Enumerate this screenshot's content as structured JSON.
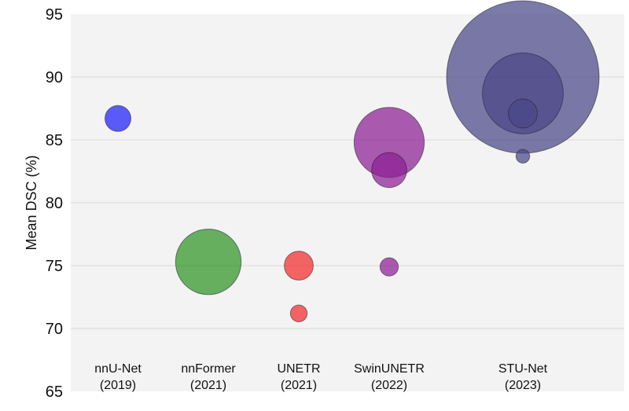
{
  "chart_data": {
    "type": "scatter",
    "title": "",
    "xlabel": "",
    "ylabel": "Mean DSC (%)",
    "ylim": [
      65,
      95
    ],
    "yticks": [
      65,
      70,
      75,
      80,
      85,
      90,
      95
    ],
    "grid": true,
    "legend": "none",
    "categories": [
      {
        "name": "nnU-Net",
        "year": "(2019)",
        "color": "#1f1ffa"
      },
      {
        "name": "nnFormer",
        "year": "(2021)",
        "color": "#2e9425"
      },
      {
        "name": "UNETR",
        "year": "(2021)",
        "color": "#f22b2b"
      },
      {
        "name": "SwinUNETR",
        "year": "(2022)",
        "color": "#8c1f94"
      },
      {
        "name": "STU-Net",
        "year": "(2023)",
        "color": "#4a4787"
      }
    ],
    "points": [
      {
        "category": "nnU-Net",
        "y": 86.7,
        "relative_size": 0.17
      },
      {
        "category": "nnFormer",
        "y": 75.3,
        "relative_size": 0.43
      },
      {
        "category": "UNETR",
        "y": 75.0,
        "relative_size": 0.19
      },
      {
        "category": "UNETR",
        "y": 71.2,
        "relative_size": 0.11
      },
      {
        "category": "SwinUNETR",
        "y": 84.8,
        "relative_size": 0.46
      },
      {
        "category": "SwinUNETR",
        "y": 82.6,
        "relative_size": 0.23
      },
      {
        "category": "SwinUNETR",
        "y": 74.9,
        "relative_size": 0.12
      },
      {
        "category": "STU-Net",
        "y": 90.0,
        "relative_size": 1.0
      },
      {
        "category": "STU-Net",
        "y": 88.7,
        "relative_size": 0.53
      },
      {
        "category": "STU-Net",
        "y": 87.1,
        "relative_size": 0.19
      },
      {
        "category": "STU-Net",
        "y": 83.7,
        "relative_size": 0.09
      }
    ]
  }
}
